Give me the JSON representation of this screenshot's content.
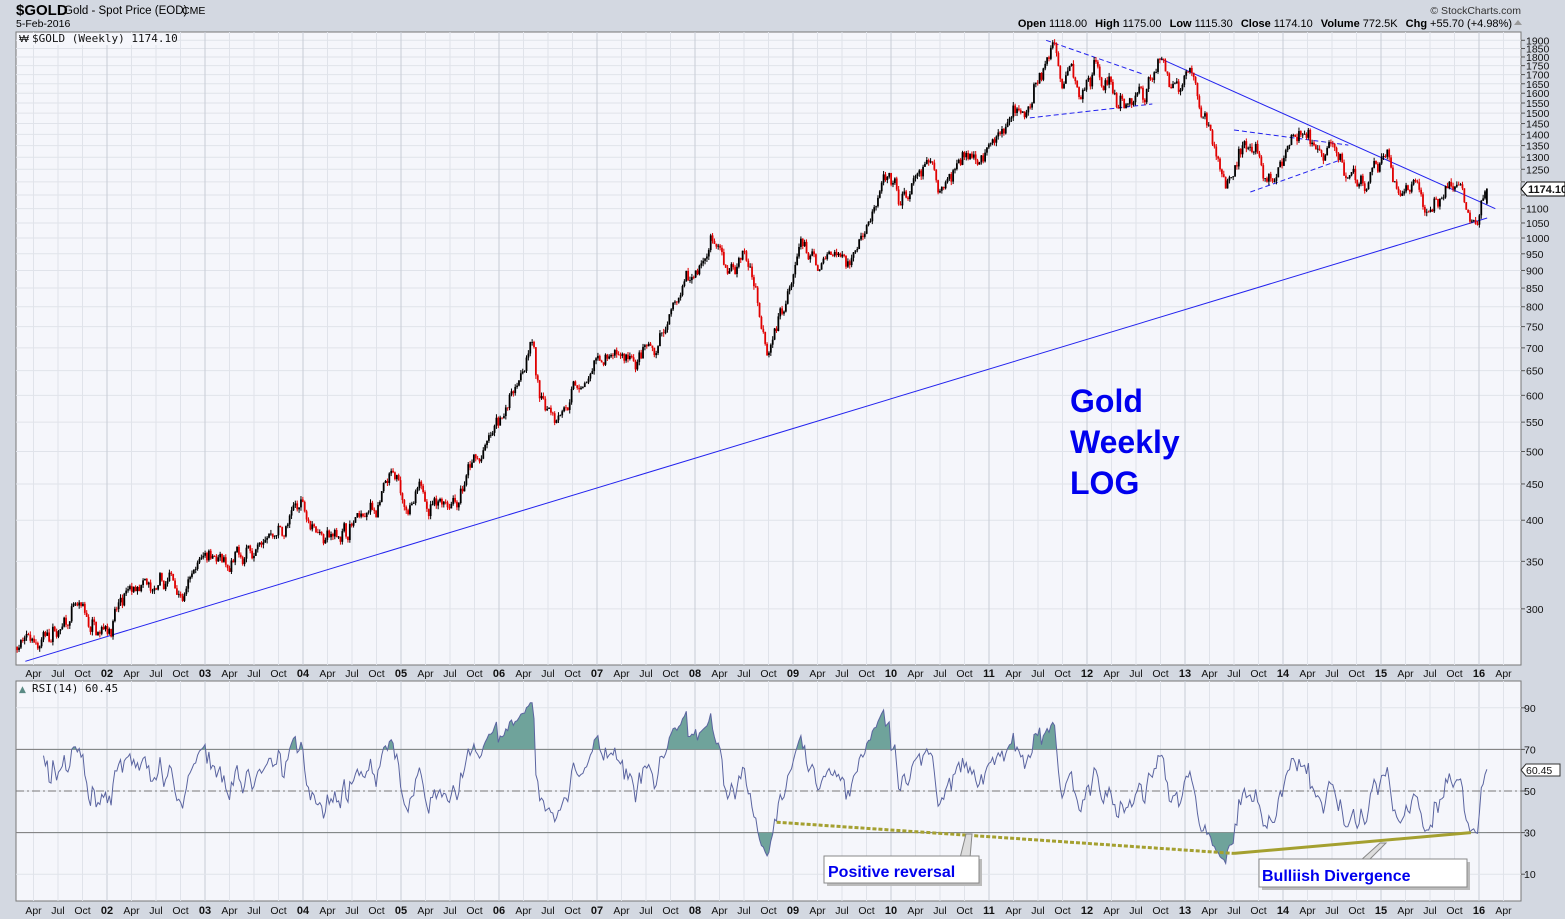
{
  "header": {
    "symbol": "$GOLD",
    "name": "Gold - Spot Price (EOD)",
    "exchange": "CME",
    "date": "5-Feb-2016",
    "copyright": "© StockCharts.com",
    "open_label": "Open",
    "open": "1118.00",
    "high_label": "High",
    "high": "1175.00",
    "low_label": "Low",
    "low": "1115.30",
    "close_label": "Close",
    "close": "1174.10",
    "volume_label": "Volume",
    "volume": "772.5K",
    "chg_label": "Chg",
    "chg": "+55.70 (+4.98%)"
  },
  "chart_data": [
    {
      "type": "candlestick",
      "legend": "$GOLD (Weekly) 1174.10",
      "scale": "log",
      "ylim": [
        250,
        1950
      ],
      "last_value_marker": "1174.10",
      "y_ticks": [
        300,
        350,
        400,
        450,
        500,
        550,
        600,
        650,
        700,
        750,
        800,
        850,
        900,
        950,
        1000,
        1050,
        1100,
        1150,
        1200,
        1250,
        1300,
        1350,
        1400,
        1450,
        1500,
        1550,
        1600,
        1650,
        1700,
        1750,
        1800,
        1850,
        1900
      ],
      "x_tick_labels": [
        "Apr",
        "Jul",
        "Oct",
        "02",
        "Apr",
        "Jul",
        "Oct",
        "03",
        "Apr",
        "Jul",
        "Oct",
        "04",
        "Apr",
        "Jul",
        "Oct",
        "05",
        "Apr",
        "Jul",
        "Oct",
        "06",
        "Apr",
        "Jul",
        "Oct",
        "07",
        "Apr",
        "Jul",
        "Oct",
        "08",
        "Apr",
        "Jul",
        "Oct",
        "09",
        "Apr",
        "Jul",
        "Oct",
        "10",
        "Apr",
        "Jul",
        "Oct",
        "11",
        "Apr",
        "Jul",
        "Oct",
        "12",
        "Apr",
        "Jul",
        "Oct",
        "13",
        "Apr",
        "Jul",
        "Oct",
        "14",
        "Apr",
        "Jul",
        "Oct",
        "15",
        "Apr",
        "Jul",
        "Oct",
        "16",
        "Apr"
      ],
      "approx_weekly_close_path": [
        [
          "2001-02",
          265
        ],
        [
          "2001-06",
          275
        ],
        [
          "2001-09",
          292
        ],
        [
          "2001-11",
          275
        ],
        [
          "2002-02",
          295
        ],
        [
          "2002-05",
          320
        ],
        [
          "2002-07",
          305
        ],
        [
          "2002-09",
          325
        ],
        [
          "2002-11",
          318
        ],
        [
          "2003-02",
          375
        ],
        [
          "2003-04",
          325
        ],
        [
          "2003-06",
          355
        ],
        [
          "2003-09",
          385
        ],
        [
          "2003-11",
          390
        ],
        [
          "2004-01",
          420
        ],
        [
          "2004-05",
          380
        ],
        [
          "2004-09",
          410
        ],
        [
          "2004-12",
          440
        ],
        [
          "2005-02",
          420
        ],
        [
          "2005-05",
          425
        ],
        [
          "2005-08",
          440
        ],
        [
          "2005-12",
          510
        ],
        [
          "2006-05",
          720
        ],
        [
          "2006-06",
          570
        ],
        [
          "2006-09",
          600
        ],
        [
          "2006-12",
          630
        ],
        [
          "2007-03",
          665
        ],
        [
          "2007-06",
          655
        ],
        [
          "2007-08",
          665
        ],
        [
          "2007-11",
          800
        ],
        [
          "2008-03",
          1000
        ],
        [
          "2008-05",
          870
        ],
        [
          "2008-07",
          960
        ],
        [
          "2008-10",
          720
        ],
        [
          "2008-12",
          860
        ],
        [
          "2009-02",
          990
        ],
        [
          "2009-04",
          880
        ],
        [
          "2009-06",
          940
        ],
        [
          "2009-08",
          940
        ],
        [
          "2009-12",
          1200
        ],
        [
          "2010-02",
          1070
        ],
        [
          "2010-06",
          1240
        ],
        [
          "2010-07",
          1170
        ],
        [
          "2010-11",
          1390
        ],
        [
          "2011-01",
          1330
        ],
        [
          "2011-04",
          1510
        ],
        [
          "2011-06",
          1520
        ],
        [
          "2011-09",
          1880
        ],
        [
          "2011-10",
          1600
        ],
        [
          "2011-11",
          1750
        ],
        [
          "2011-12",
          1560
        ],
        [
          "2012-02",
          1780
        ],
        [
          "2012-05",
          1550
        ],
        [
          "2012-08",
          1600
        ],
        [
          "2012-10",
          1780
        ],
        [
          "2012-12",
          1680
        ],
        [
          "2013-02",
          1650
        ],
        [
          "2013-04",
          1420
        ],
        [
          "2013-06",
          1200
        ],
        [
          "2013-08",
          1400
        ],
        [
          "2013-12",
          1200
        ],
        [
          "2014-03",
          1380
        ],
        [
          "2014-06",
          1260
        ],
        [
          "2014-07",
          1330
        ],
        [
          "2014-11",
          1150
        ],
        [
          "2015-01",
          1290
        ],
        [
          "2015-03",
          1150
        ],
        [
          "2015-05",
          1200
        ],
        [
          "2015-07",
          1090
        ],
        [
          "2015-10",
          1180
        ],
        [
          "2015-12",
          1055
        ],
        [
          "2016-02-05",
          1174.1
        ]
      ],
      "last_bar": {
        "open": 1118.0,
        "high": 1175.0,
        "low": 1115.3,
        "close": 1174.1
      },
      "trendlines": [
        {
          "style": "solid",
          "from": [
            "2012-10",
            1790
          ],
          "to": [
            "2016-03",
            1100
          ]
        },
        {
          "style": "solid",
          "from": [
            "2001-03",
            253
          ],
          "to": [
            "2016-02",
            1067
          ]
        },
        {
          "style": "dashed",
          "from": [
            "2011-08",
            1900
          ],
          "to": [
            "2012-08",
            1700
          ]
        },
        {
          "style": "dashed",
          "from": [
            "2011-06",
            1477
          ],
          "to": [
            "2012-09",
            1545
          ]
        },
        {
          "style": "dashed",
          "from": [
            "2013-07",
            1420
          ],
          "to": [
            "2014-09",
            1352
          ]
        },
        {
          "style": "dashed",
          "from": [
            "2013-09",
            1161
          ],
          "to": [
            "2014-08",
            1288
          ]
        }
      ],
      "annotation": [
        "Gold",
        "Weekly",
        "LOG"
      ]
    },
    {
      "type": "line",
      "legend": "RSI(14) 60.45",
      "ylim": [
        0,
        100
      ],
      "y_ticks": [
        10,
        30,
        50,
        70,
        90
      ],
      "reference_lines": [
        30,
        50,
        70
      ],
      "last_value_marker": "60.45",
      "last_value": 60.45,
      "shade_above": 70,
      "shade_below": 30,
      "annotations": [
        {
          "text": "Positive reversal",
          "line_style": "dotted",
          "from": [
            "2008-11",
            35
          ],
          "to": [
            "2013-07",
            20
          ]
        },
        {
          "text": "Bulliish Divergence",
          "line_style": "solid",
          "from": [
            "2013-07",
            20
          ],
          "to": [
            "2015-12",
            30
          ]
        }
      ]
    }
  ],
  "colors": {
    "up": "#000000",
    "down": "#e00000",
    "trendline": "#2222ee",
    "rsi": "#5a64a0",
    "rsi_fill": "#6fa39b",
    "divergence": "#a4a030",
    "annotation_text": "#0000ee"
  }
}
